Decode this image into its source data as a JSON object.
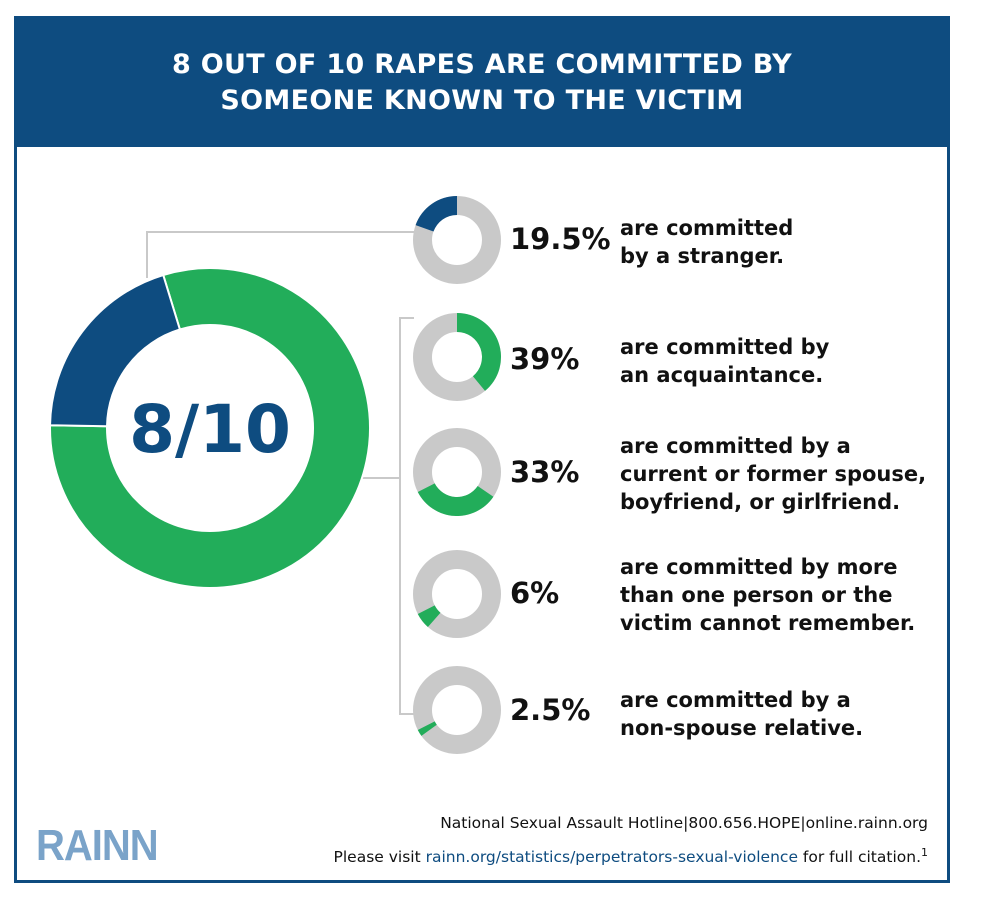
{
  "header": {
    "title_line1": "8 OUT OF 10 RAPES ARE COMMITTED BY",
    "title_line2": "SOMEONE KNOWN TO THE VICTIM"
  },
  "big_chart": {
    "label": "8/10",
    "value_fraction": 0.8,
    "colors": {
      "known": "#22ad5a",
      "stranger": "#0e4c80"
    }
  },
  "colors": {
    "green": "#22ad5a",
    "navy": "#0e4c80",
    "gray": "#c9c9c9",
    "connector": "#c9c9c9"
  },
  "chart_data": {
    "type": "pie",
    "title": "8 OUT OF 10 RAPES ARE COMMITTED BY SOMEONE KNOWN TO THE VICTIM",
    "categories": [
      "stranger",
      "acquaintance",
      "spouse/partner",
      "multiple or unknown",
      "non-spouse relative"
    ],
    "values": [
      19.5,
      39,
      33,
      6,
      2.5
    ],
    "items": [
      {
        "pct": "19.5%",
        "value": 19.5,
        "color": "#0e4c80",
        "lines": [
          "are committed",
          "by a stranger."
        ]
      },
      {
        "pct": "39%",
        "value": 39,
        "color": "#22ad5a",
        "lines": [
          "are committed by",
          "an acquaintance."
        ]
      },
      {
        "pct": "33%",
        "value": 33,
        "color": "#22ad5a",
        "lines": [
          "are committed by a",
          "current or former spouse,",
          "boyfriend, or girlfriend."
        ]
      },
      {
        "pct": "6%",
        "value": 6,
        "color": "#22ad5a",
        "lines": [
          "are committed by more",
          "than one person or the",
          "victim cannot remember."
        ]
      },
      {
        "pct": "2.5%",
        "value": 2.5,
        "color": "#22ad5a",
        "lines": [
          "are committed by a",
          "non-spouse relative."
        ]
      }
    ]
  },
  "footer": {
    "hotline_label": "National Sexual Assault Hotline",
    "phone": "800.656.HOPE",
    "website": "online.rainn.org",
    "citation_prefix": "Please visit ",
    "citation_link": "rainn.org/statistics/perpetrators-sexual-violence",
    "citation_suffix": " for full citation.",
    "footnote": "1",
    "separator": "|"
  },
  "logo_text": "RAINN"
}
